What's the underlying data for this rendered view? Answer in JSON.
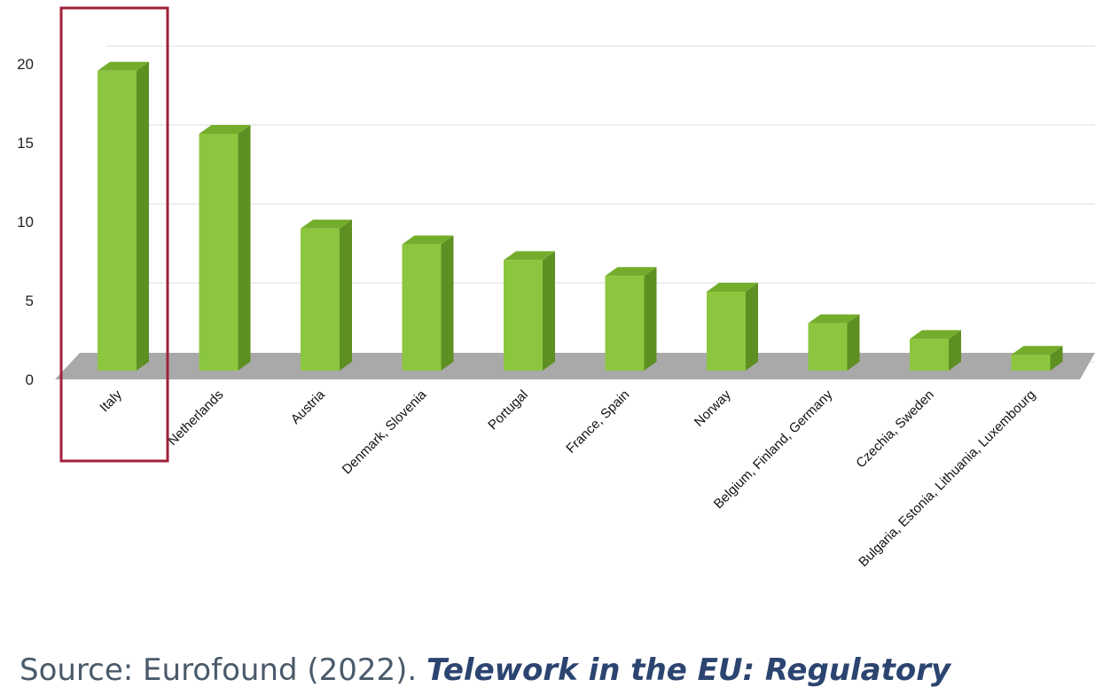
{
  "chart_data": {
    "type": "bar",
    "categories": [
      "Italy",
      "Netherlands",
      "Austria",
      "Denmark, Slovenia",
      "Portugal",
      "France, Spain",
      "Norway",
      "Belgium, Finland, Germany",
      "Czechia, Sweden",
      "Bulgaria, Estonia, Lithuania, Luxembourg"
    ],
    "values": [
      19,
      15,
      9,
      8,
      7,
      6,
      5,
      3,
      2,
      1
    ],
    "yticks": [
      "0",
      "5",
      "10",
      "15",
      "20"
    ],
    "ylim": [
      0,
      20
    ],
    "grid": true,
    "bar_color": "#8cc63f",
    "bar_side_color": "#5e8f22",
    "bar_top_color": "#74ad2c",
    "floor_color": "#a9a9a9",
    "highlight_category": "Italy",
    "highlight_color": "#a0213a"
  },
  "source": {
    "prefix": "Source: Eurofound (2022). ",
    "title": "Telework in the EU: Regulatory"
  }
}
